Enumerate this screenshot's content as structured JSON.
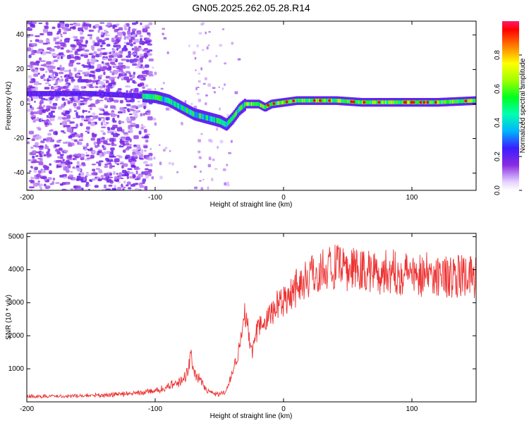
{
  "title": "GN05.2025.262.05.28.R14",
  "colors": {
    "trace": "#ee3333",
    "frame": "#000000",
    "background": "#ffffff"
  },
  "chart_data": [
    {
      "type": "heatmap",
      "name": "spectrogram",
      "xlabel": "Height of straight line (km)",
      "ylabel": "Frequency (Hz)",
      "xlim": [
        -200,
        150
      ],
      "ylim": [
        -50,
        48
      ],
      "xticks": [
        -200,
        -100,
        0,
        100
      ],
      "xtick_labels": [
        "-200",
        "-100",
        "0",
        "100"
      ],
      "yticks": [
        -40,
        -20,
        0,
        20,
        40
      ],
      "ytick_labels": [
        "-40",
        "-20",
        "0",
        "20",
        "40"
      ],
      "ridge": {
        "x": [
          -200,
          -150,
          -120,
          -100,
          -90,
          -80,
          -70,
          -60,
          -50,
          -45,
          -40,
          -35,
          -30,
          -20,
          -15,
          -10,
          0,
          10,
          20,
          40,
          60,
          80,
          100,
          120,
          150
        ],
        "y": [
          6,
          6,
          5,
          4,
          2,
          -2,
          -6,
          -8,
          -10,
          -12,
          -8,
          -3,
          0,
          0,
          -2,
          0,
          1,
          2,
          2,
          2,
          1,
          1,
          1,
          1,
          2
        ]
      },
      "noise_region_x": [
        -200,
        -105
      ],
      "colorbar": {
        "label": "Normalized spectral amplitude",
        "range": [
          0.0,
          1.0
        ],
        "ticks": [
          0.0,
          0.2,
          0.4,
          0.6,
          0.8
        ],
        "tick_labels": [
          "0.0",
          "0.2",
          "0.4",
          "0.6",
          "0.8"
        ]
      }
    },
    {
      "type": "line",
      "name": "snr",
      "xlabel": "Height of straight line (km)",
      "ylabel": "SNR (10 * v/v)",
      "xlim": [
        -200,
        150
      ],
      "ylim": [
        0,
        5100
      ],
      "xticks": [
        -200,
        -100,
        0,
        100
      ],
      "xtick_labels": [
        "-200",
        "-100",
        "0",
        "100"
      ],
      "yticks": [
        1000,
        2000,
        3000,
        4000,
        5000
      ],
      "ytick_labels": [
        "1000",
        "2000",
        "3000",
        "4000",
        "5000"
      ],
      "series": [
        {
          "name": "SNR",
          "x": [
            -200,
            -180,
            -160,
            -140,
            -120,
            -100,
            -90,
            -80,
            -75,
            -72,
            -70,
            -65,
            -60,
            -55,
            -50,
            -45,
            -42,
            -40,
            -38,
            -35,
            -32,
            -30,
            -28,
            -25,
            -22,
            -20,
            -15,
            -10,
            -5,
            0,
            5,
            10,
            15,
            20,
            25,
            30,
            35,
            40,
            50,
            60,
            70,
            80,
            90,
            100,
            110,
            120,
            130,
            140,
            150
          ],
          "y": [
            160,
            170,
            180,
            200,
            250,
            320,
            450,
            620,
            900,
            1300,
            1000,
            650,
            350,
            260,
            240,
            300,
            650,
            900,
            1150,
            1500,
            2300,
            2900,
            2200,
            1500,
            1900,
            2200,
            2400,
            2700,
            2900,
            3100,
            3300,
            3500,
            3650,
            3800,
            3900,
            4000,
            4100,
            4050,
            4000,
            3980,
            3950,
            3950,
            3900,
            3900,
            3850,
            3850,
            3800,
            3780,
            3750
          ]
        }
      ]
    }
  ]
}
